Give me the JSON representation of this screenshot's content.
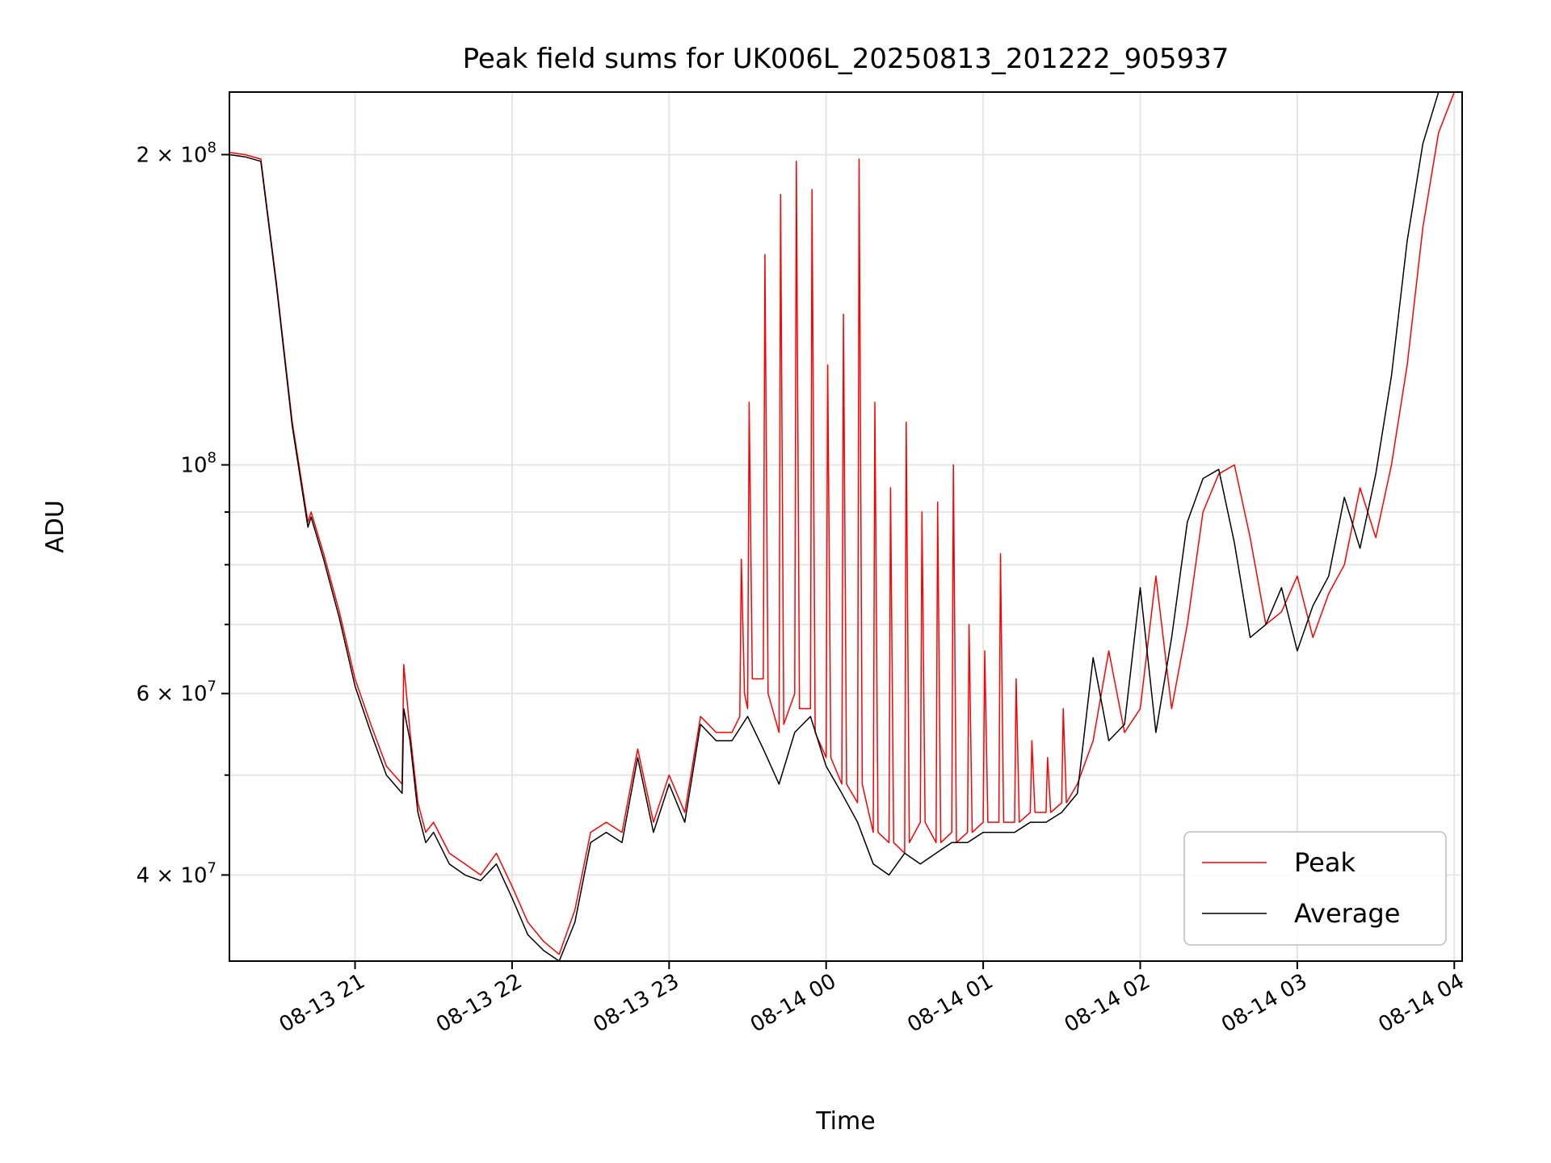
{
  "chart_data": {
    "type": "line",
    "title": "Peak field sums for UK006L_20250813_201222_905937",
    "xlabel": "Time",
    "ylabel": "ADU",
    "yscale": "log",
    "grid": true,
    "legend_position": "lower-right",
    "xlim": [
      20.2,
      28.05
    ],
    "ylim": [
      33000000,
      230000000
    ],
    "x_unit": "hours since 08-13 00:00",
    "x_ticks": [
      {
        "value": 21,
        "label": "08-13 21"
      },
      {
        "value": 22,
        "label": "08-13 22"
      },
      {
        "value": 23,
        "label": "08-13 23"
      },
      {
        "value": 24,
        "label": "08-14 00"
      },
      {
        "value": 25,
        "label": "08-14 01"
      },
      {
        "value": 26,
        "label": "08-14 02"
      },
      {
        "value": 27,
        "label": "08-14 03"
      },
      {
        "value": 28,
        "label": "08-14 04"
      }
    ],
    "y_ticks": [
      {
        "value": 40000000,
        "mant": "4 × 10",
        "exp": "7"
      },
      {
        "value": 60000000,
        "mant": "6 × 10",
        "exp": "7"
      },
      {
        "value": 100000000,
        "mant": "10",
        "exp": "8"
      },
      {
        "value": 200000000,
        "mant": "2 × 10",
        "exp": "8"
      }
    ],
    "y_minor_ticks": [
      50000000,
      70000000,
      80000000,
      90000000
    ],
    "series": [
      {
        "name": "Peak",
        "color": "#ff0000",
        "x": [
          20.2,
          20.3,
          20.4,
          20.5,
          20.6,
          20.7,
          20.72,
          20.8,
          20.9,
          21.0,
          21.1,
          21.2,
          21.3,
          21.31,
          21.35,
          21.4,
          21.45,
          21.5,
          21.6,
          21.7,
          21.8,
          21.9,
          22.0,
          22.1,
          22.2,
          22.3,
          22.4,
          22.5,
          22.6,
          22.7,
          22.8,
          22.9,
          23.0,
          23.1,
          23.2,
          23.3,
          23.4,
          23.45,
          23.46,
          23.48,
          23.5,
          23.51,
          23.53,
          23.6,
          23.61,
          23.63,
          23.7,
          23.71,
          23.73,
          23.8,
          23.81,
          23.83,
          23.9,
          23.91,
          23.93,
          24.0,
          24.01,
          24.03,
          24.1,
          24.11,
          24.13,
          24.2,
          24.21,
          24.23,
          24.3,
          24.31,
          24.33,
          24.4,
          24.41,
          24.43,
          24.5,
          24.51,
          24.53,
          24.6,
          24.61,
          24.63,
          24.7,
          24.71,
          24.73,
          24.8,
          24.81,
          24.83,
          24.9,
          24.91,
          24.93,
          25.0,
          25.01,
          25.03,
          25.1,
          25.11,
          25.13,
          25.2,
          25.21,
          25.23,
          25.3,
          25.31,
          25.33,
          25.4,
          25.41,
          25.43,
          25.5,
          25.51,
          25.53,
          25.6,
          25.7,
          25.8,
          25.9,
          26.0,
          26.1,
          26.2,
          26.3,
          26.4,
          26.5,
          26.6,
          26.7,
          26.8,
          26.9,
          27.0,
          27.1,
          27.2,
          27.3,
          27.4,
          27.5,
          27.6,
          27.7,
          27.8,
          27.9,
          28.0
        ],
        "y": [
          201000000,
          200000000,
          198000000,
          150000000,
          110000000,
          88000000,
          90000000,
          82000000,
          72000000,
          62000000,
          56000000,
          51000000,
          49000000,
          64000000,
          55000000,
          47000000,
          44000000,
          45000000,
          42000000,
          41000000,
          40000000,
          42000000,
          39000000,
          36000000,
          34500000,
          33500000,
          37000000,
          44000000,
          45000000,
          44000000,
          53000000,
          45000000,
          50000000,
          46000000,
          57000000,
          55000000,
          55000000,
          57000000,
          81000000,
          60000000,
          58000000,
          115000000,
          62000000,
          62000000,
          160000000,
          60000000,
          55000000,
          183000000,
          56000000,
          60000000,
          197000000,
          58000000,
          58000000,
          185000000,
          55000000,
          52000000,
          125000000,
          52000000,
          49000000,
          140000000,
          49000000,
          47000000,
          198000000,
          49000000,
          44000000,
          115000000,
          44000000,
          43000000,
          95000000,
          43000000,
          42000000,
          110000000,
          43000000,
          45000000,
          90000000,
          45000000,
          43000000,
          92000000,
          43000000,
          44000000,
          100000000,
          43000000,
          44000000,
          70000000,
          44000000,
          45000000,
          66000000,
          45000000,
          45000000,
          82000000,
          45000000,
          45000000,
          62000000,
          45000000,
          46000000,
          54000000,
          46000000,
          46000000,
          52000000,
          46000000,
          47000000,
          58000000,
          47000000,
          49000000,
          54000000,
          66000000,
          55000000,
          58000000,
          78000000,
          58000000,
          70000000,
          90000000,
          98000000,
          100000000,
          85000000,
          70000000,
          72000000,
          78000000,
          68000000,
          75000000,
          80000000,
          95000000,
          85000000,
          100000000,
          125000000,
          170000000,
          210000000,
          230000000
        ]
      },
      {
        "name": "Average",
        "color": "#000000",
        "x": [
          20.2,
          20.3,
          20.4,
          20.5,
          20.6,
          20.7,
          20.72,
          20.8,
          20.9,
          21.0,
          21.1,
          21.2,
          21.3,
          21.31,
          21.35,
          21.4,
          21.45,
          21.5,
          21.6,
          21.7,
          21.8,
          21.9,
          22.0,
          22.1,
          22.2,
          22.3,
          22.4,
          22.5,
          22.6,
          22.7,
          22.8,
          22.9,
          23.0,
          23.1,
          23.2,
          23.3,
          23.4,
          23.5,
          23.6,
          23.7,
          23.8,
          23.9,
          24.0,
          24.1,
          24.2,
          24.3,
          24.4,
          24.5,
          24.6,
          24.7,
          24.8,
          24.9,
          25.0,
          25.1,
          25.2,
          25.3,
          25.4,
          25.5,
          25.6,
          25.7,
          25.8,
          25.9,
          26.0,
          26.1,
          26.2,
          26.3,
          26.4,
          26.5,
          26.6,
          26.7,
          26.8,
          26.9,
          27.0,
          27.1,
          27.2,
          27.3,
          27.4,
          27.5,
          27.6,
          27.7,
          27.8,
          27.9,
          28.0
        ],
        "y": [
          200000000,
          199000000,
          197000000,
          149000000,
          109000000,
          87000000,
          89000000,
          81000000,
          71000000,
          61000000,
          55000000,
          50000000,
          48000000,
          58000000,
          54000000,
          46000000,
          43000000,
          44000000,
          41000000,
          40000000,
          39500000,
          41000000,
          38000000,
          35000000,
          33800000,
          33000000,
          36000000,
          43000000,
          44000000,
          43000000,
          52000000,
          44000000,
          49000000,
          45000000,
          56000000,
          54000000,
          54000000,
          57000000,
          53000000,
          49000000,
          55000000,
          57000000,
          51000000,
          48000000,
          45000000,
          41000000,
          40000000,
          42000000,
          41000000,
          42000000,
          43000000,
          43000000,
          44000000,
          44000000,
          44000000,
          45000000,
          45000000,
          46000000,
          48000000,
          65000000,
          54000000,
          56000000,
          76000000,
          55000000,
          68000000,
          88000000,
          97000000,
          99000000,
          84000000,
          68000000,
          70000000,
          76000000,
          66000000,
          73000000,
          78000000,
          93000000,
          83000000,
          98000000,
          122000000,
          165000000,
          205000000,
          230000000,
          232000000
        ]
      }
    ]
  }
}
